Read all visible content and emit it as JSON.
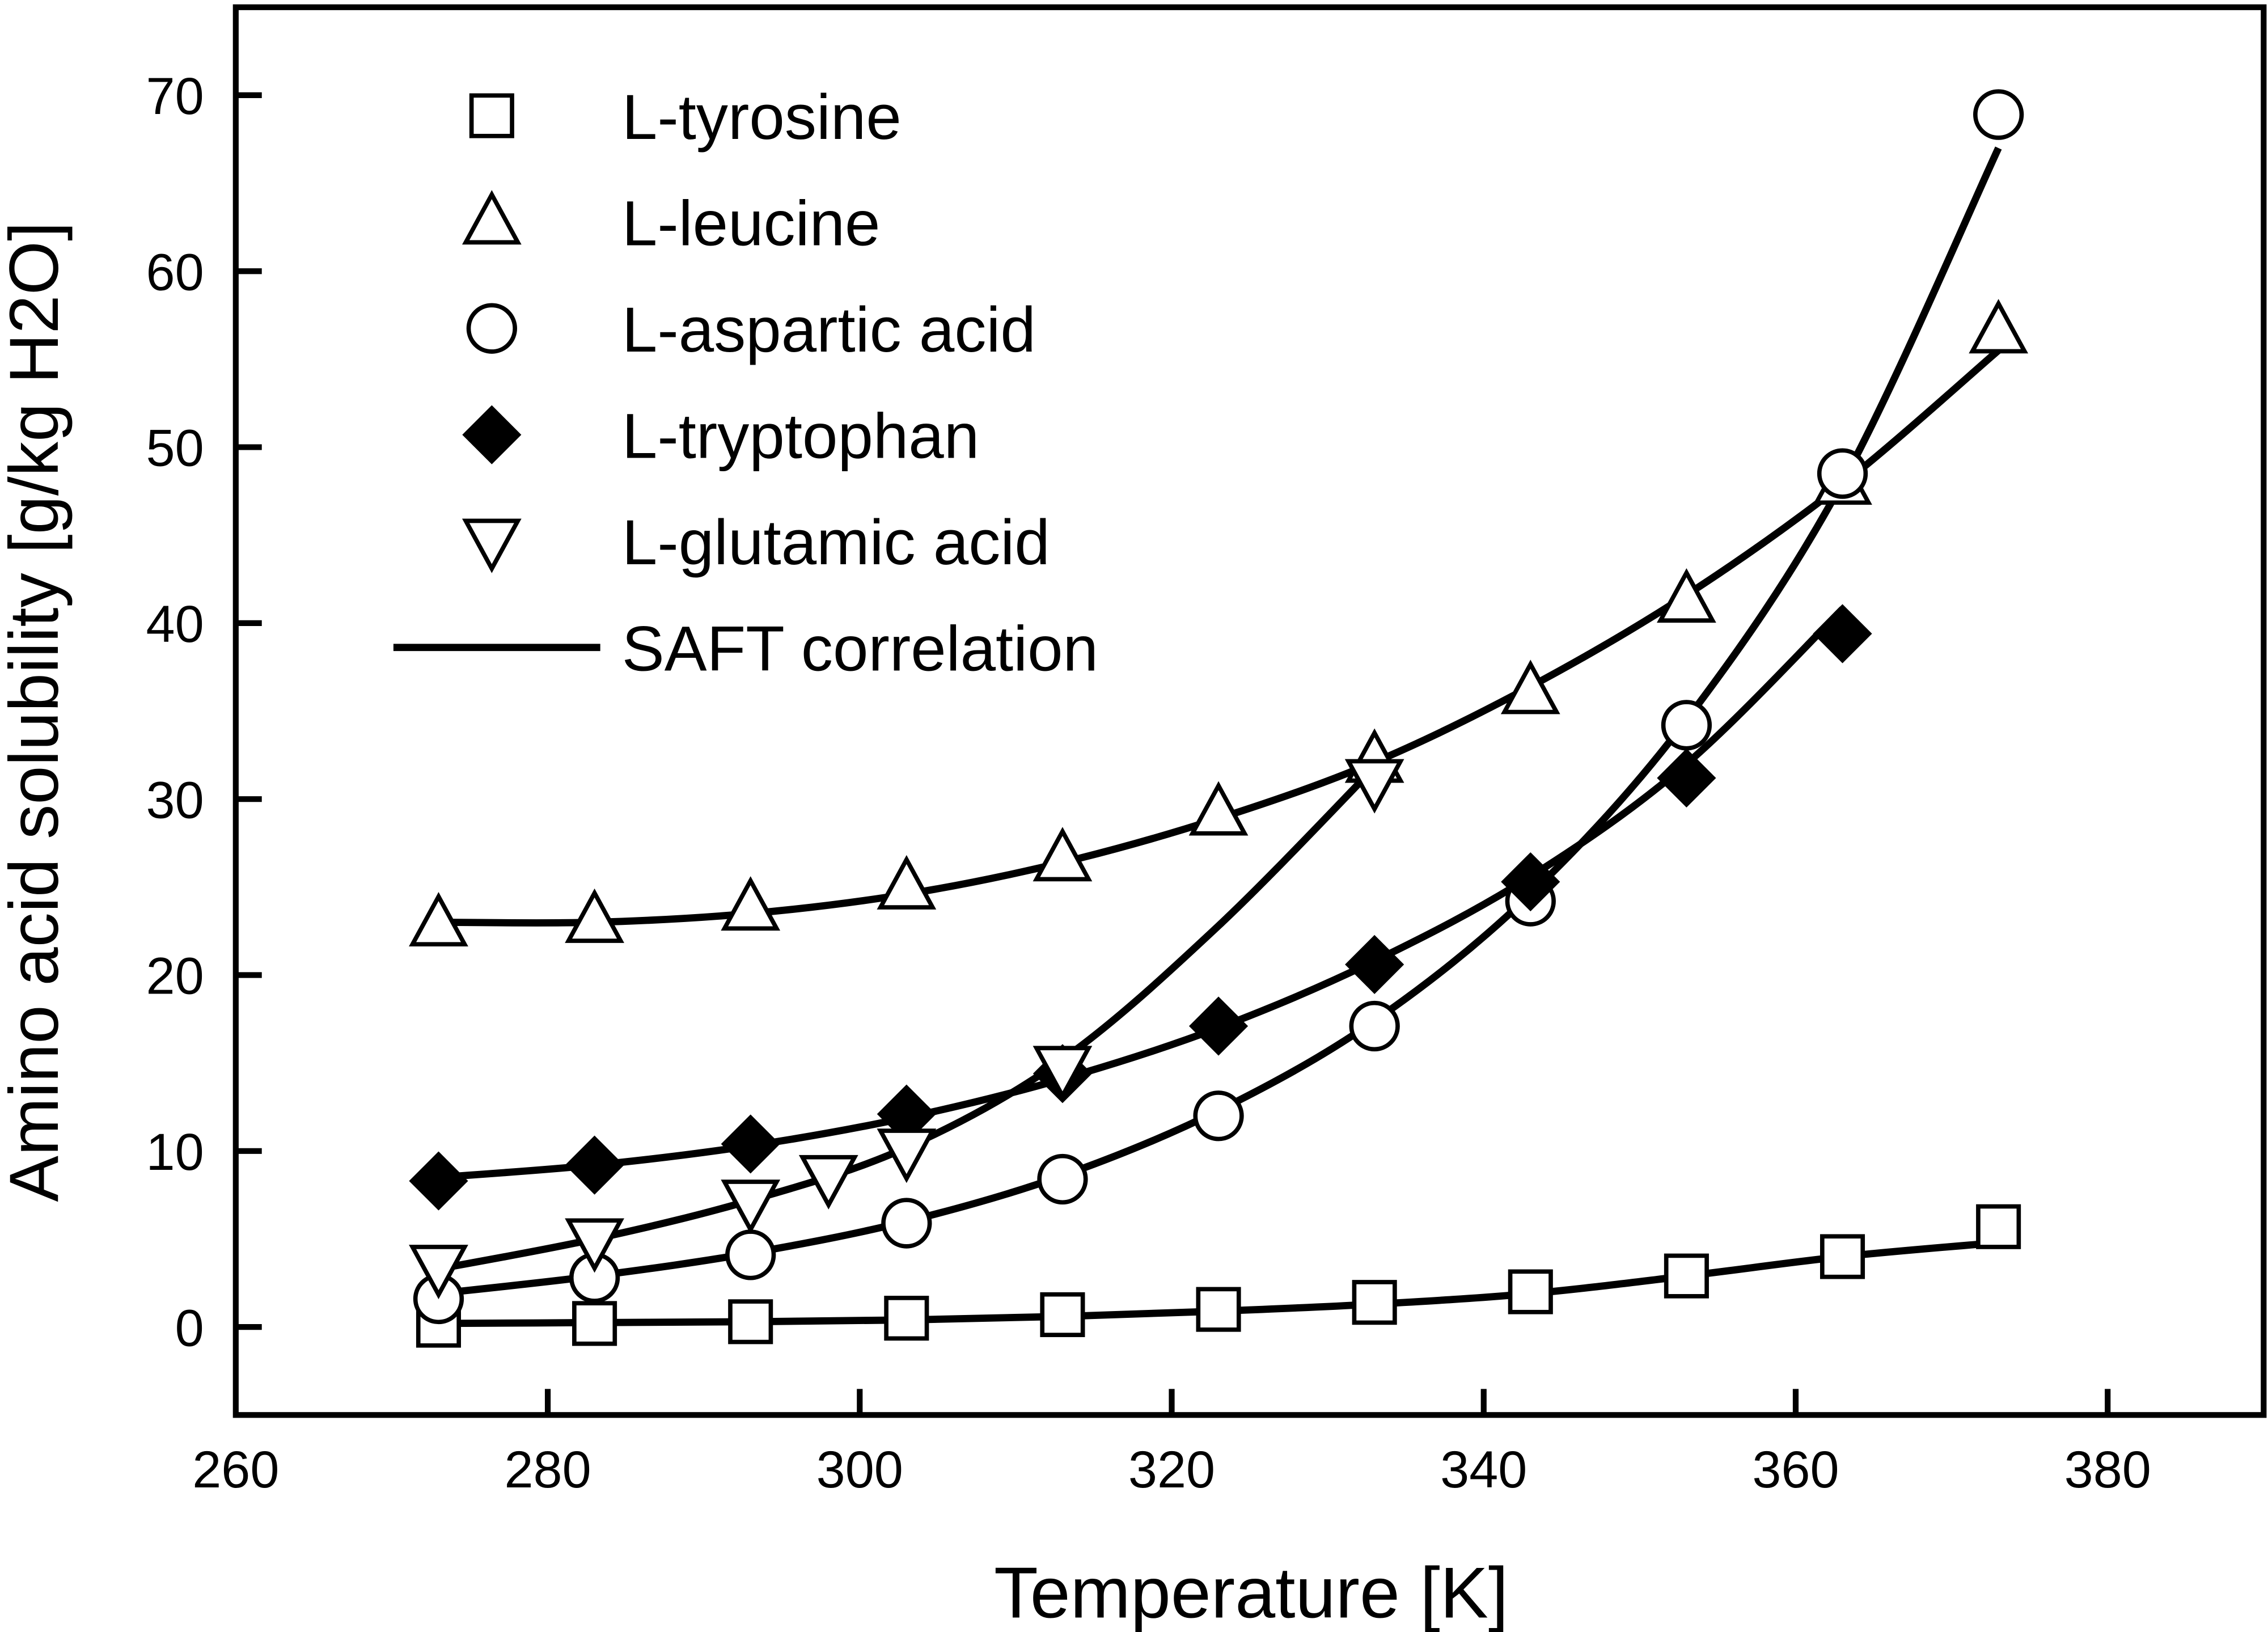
{
  "chart_data": {
    "type": "scatter",
    "title": "",
    "xlabel": "Temperature [K]",
    "ylabel": "Amino acid solubility [g/kg H2O]",
    "xlim": [
      260,
      390
    ],
    "ylim": [
      -5,
      75
    ],
    "xticks": [
      260,
      280,
      300,
      320,
      340,
      360,
      380
    ],
    "yticks": [
      0,
      10,
      20,
      30,
      40,
      50,
      60,
      70
    ],
    "grid": false,
    "legend_placement": "top-left",
    "series": [
      {
        "name": "L-tyrosine",
        "marker": "square-open",
        "x": [
          273,
          283,
          293,
          303,
          313,
          323,
          333,
          343,
          353,
          363,
          373
        ],
        "y": [
          0.1,
          0.2,
          0.3,
          0.5,
          0.7,
          1.0,
          1.4,
          2.0,
          2.9,
          4.0,
          5.7
        ],
        "fit_x": [
          273,
          283,
          293,
          303,
          313,
          323,
          333,
          343,
          353,
          363,
          373
        ],
        "fit_y": [
          0.2,
          0.25,
          0.3,
          0.4,
          0.6,
          0.9,
          1.3,
          1.9,
          2.9,
          4.0,
          4.8
        ]
      },
      {
        "name": "L-leucine",
        "marker": "triangle-up-open",
        "x": [
          273,
          283,
          293,
          303,
          313,
          323,
          333,
          343,
          353,
          363,
          373
        ],
        "y": [
          22.9,
          23.1,
          23.8,
          25.0,
          26.6,
          29.2,
          32.2,
          36.1,
          41.3,
          48.0,
          56.6
        ],
        "fit_x": [
          273,
          283,
          293,
          303,
          313,
          323,
          333,
          343,
          353,
          363,
          373
        ],
        "fit_y": [
          23.0,
          23.0,
          23.5,
          24.6,
          26.4,
          28.9,
          32.1,
          36.4,
          41.6,
          47.9,
          55.5
        ]
      },
      {
        "name": "L-aspartic acid",
        "marker": "circle-open",
        "x": [
          273,
          283,
          293,
          303,
          313,
          323,
          333,
          343,
          353,
          363,
          373
        ],
        "y": [
          1.6,
          2.8,
          4.1,
          5.9,
          8.4,
          12.0,
          17.1,
          24.2,
          34.2,
          48.5,
          68.9
        ],
        "fit_x": [
          273,
          283,
          293,
          303,
          313,
          323,
          333,
          343,
          353,
          363,
          373
        ],
        "fit_y": [
          1.9,
          2.9,
          4.2,
          6.0,
          8.6,
          12.3,
          17.4,
          24.6,
          34.5,
          48.0,
          67.0
        ]
      },
      {
        "name": "L-tryptophan",
        "marker": "diamond-filled",
        "x": [
          273,
          283,
          293,
          303,
          313,
          323,
          333,
          343,
          353,
          363
        ],
        "y": [
          8.3,
          9.2,
          10.4,
          12.1,
          14.4,
          17.1,
          20.6,
          25.3,
          31.2,
          39.4
        ],
        "fit_x": [
          273,
          283,
          293,
          303,
          313,
          323,
          333,
          343,
          353,
          363
        ],
        "fit_y": [
          8.5,
          9.2,
          10.3,
          11.9,
          14.1,
          17.0,
          20.8,
          25.6,
          32.0,
          40.8
        ]
      },
      {
        "name": "L-glutamic acid",
        "marker": "triangle-down-open",
        "x": [
          273,
          283,
          293,
          298,
          303,
          313,
          333
        ],
        "y": [
          3.4,
          4.9,
          7.1,
          8.5,
          10.0,
          14.7,
          31.0
        ],
        "fit_x": [
          273,
          283,
          293,
          303,
          313,
          323,
          333
        ],
        "fit_y": [
          3.3,
          5.0,
          7.2,
          10.2,
          15.2,
          22.8,
          31.8
        ]
      }
    ],
    "fit_legend": "SAFT correlation"
  }
}
